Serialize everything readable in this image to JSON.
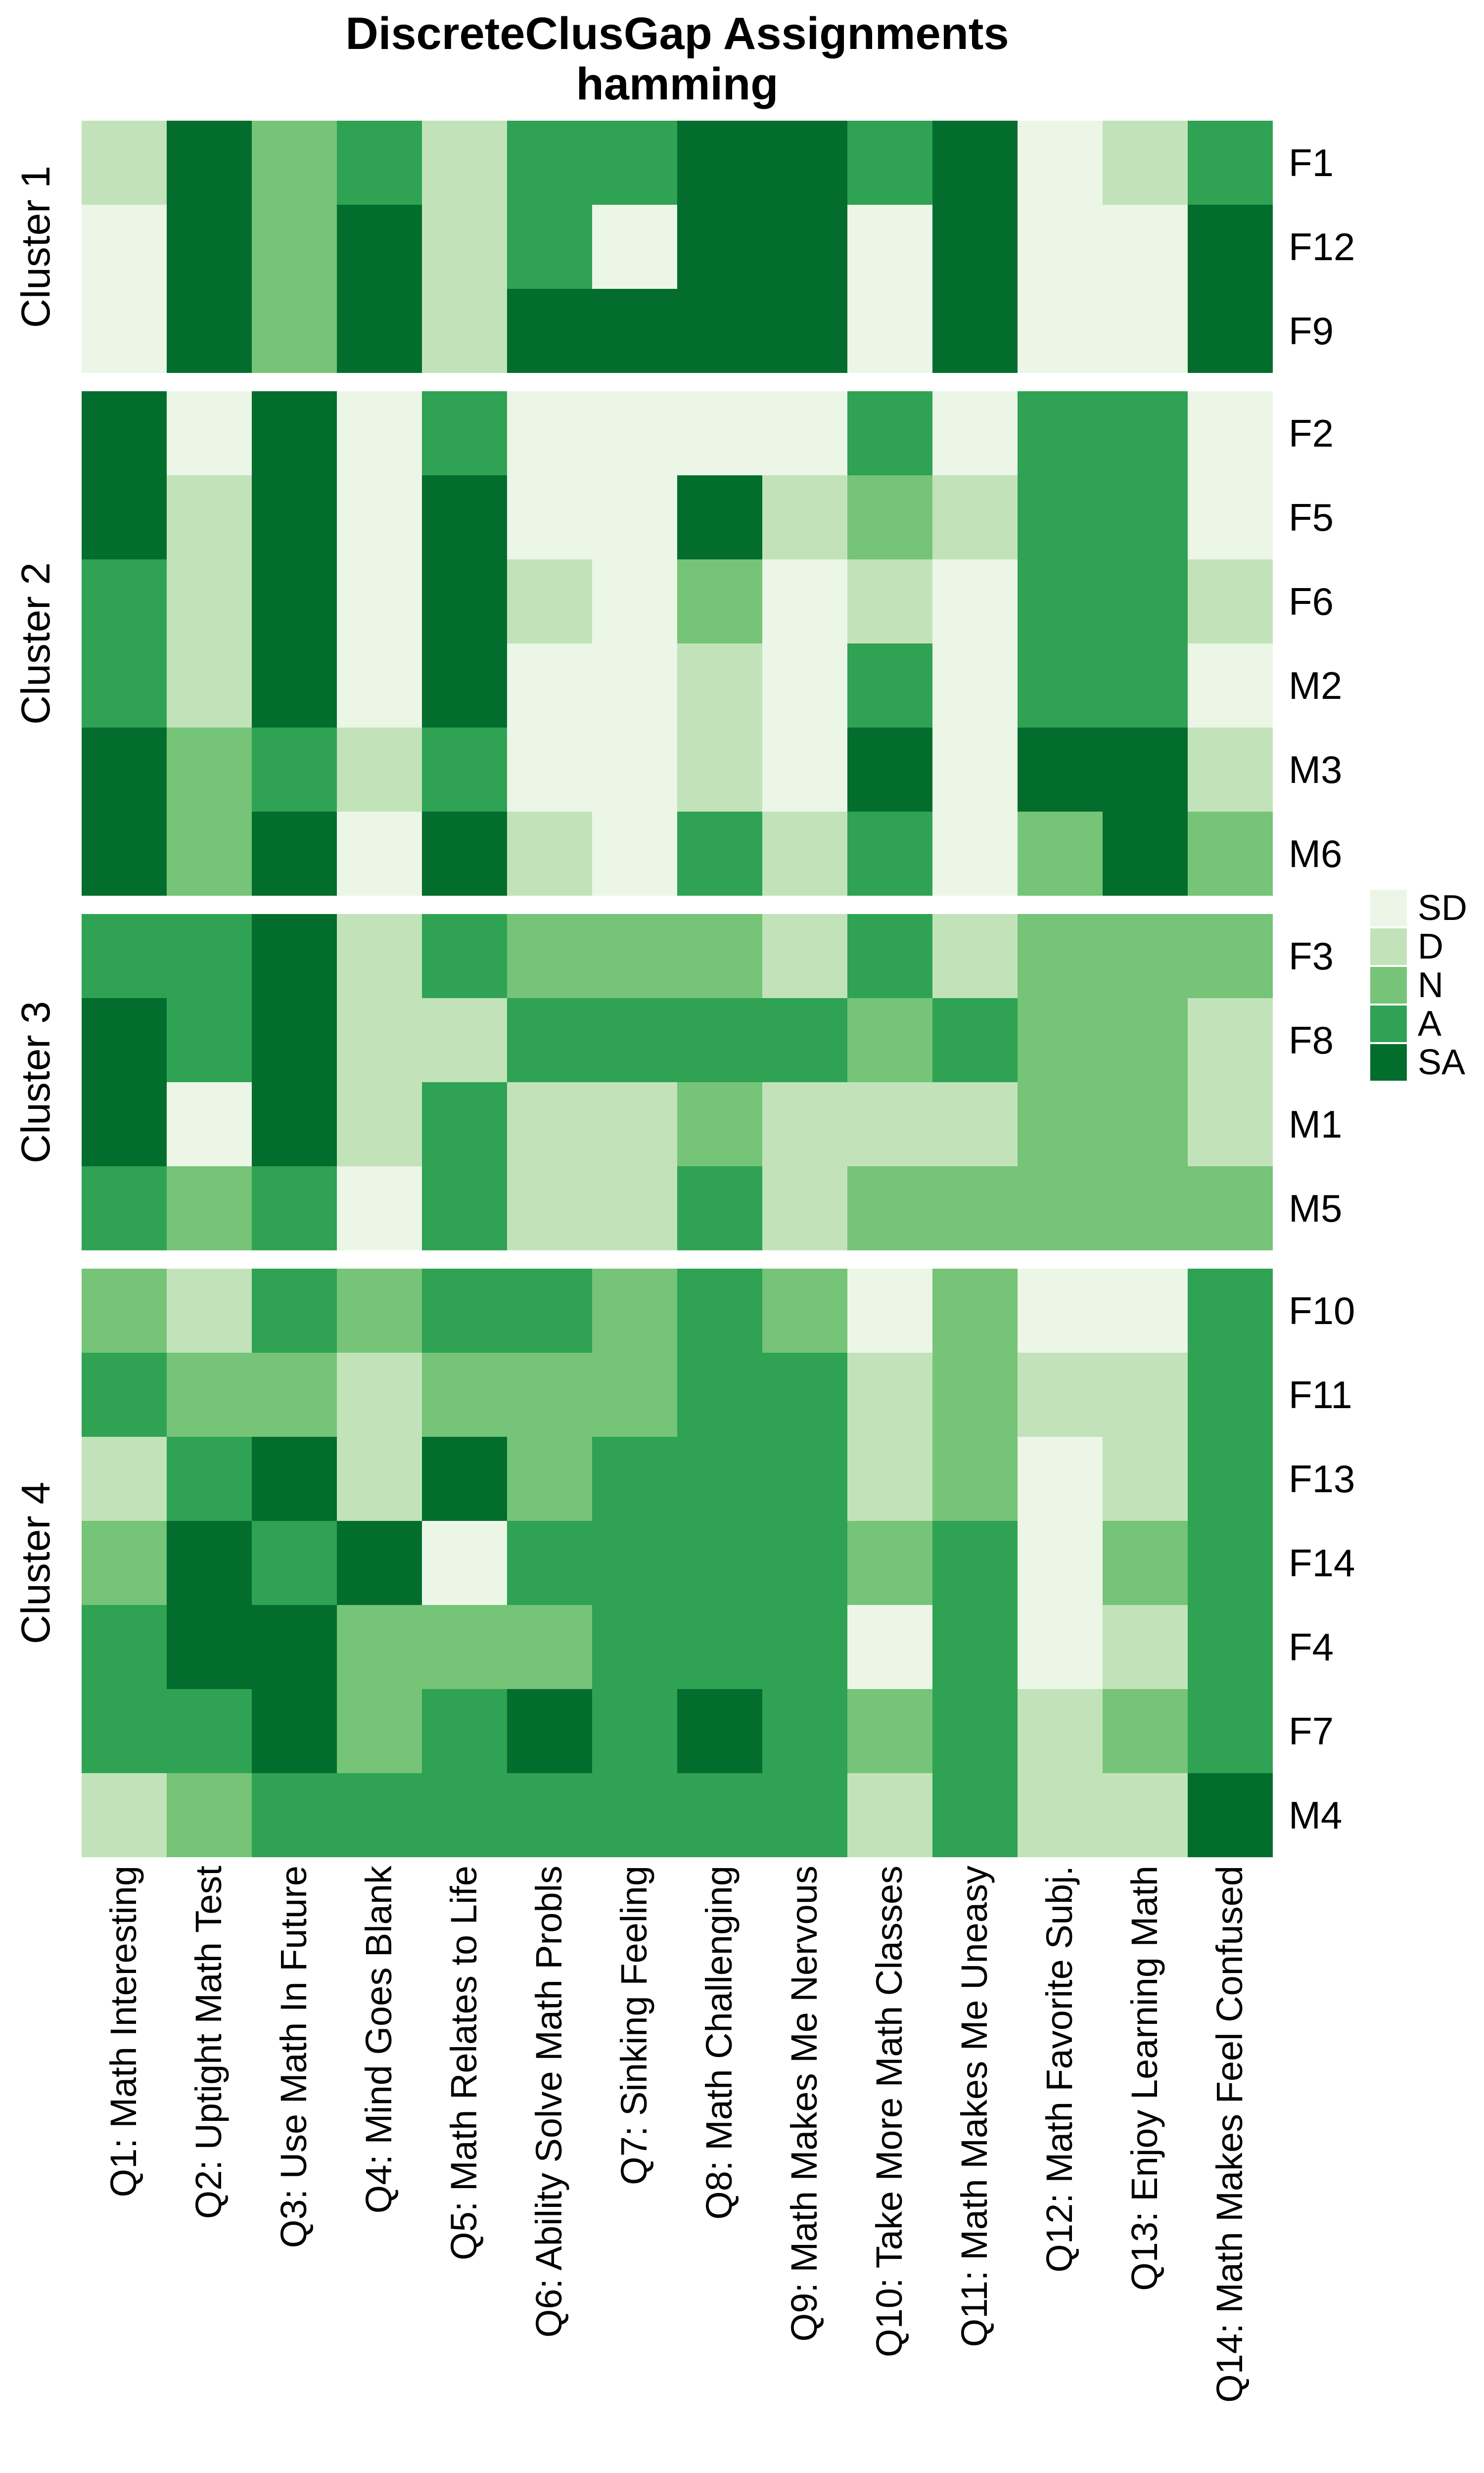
{
  "title": "DiscreteClusGap Assignments",
  "subtitle": "hamming",
  "chart_data": {
    "type": "heatmap",
    "title": "DiscreteClusGap Assignments",
    "subtitle": "hamming",
    "legend_position": "right",
    "grid": false,
    "columns": [
      "Q1: Math Interesting",
      "Q2: Uptight Math Test",
      "Q3: Use Math In Future",
      "Q4: Mind Goes Blank",
      "Q5: Math Relates to Life",
      "Q6: Ability Solve Math Probls",
      "Q7: Sinking Feeling",
      "Q8: Math Challenging",
      "Q9: Math Makes Me Nervous",
      "Q10: Take More Math Classes",
      "Q11: Math Makes Me Uneasy",
      "Q12: Math Favorite Subj.",
      "Q13: Enjoy Learning Math",
      "Q14: Math Makes Feel Confused"
    ],
    "scale": {
      "levels": [
        "SD",
        "D",
        "N",
        "A",
        "SA"
      ],
      "colors": {
        "SD": "#EBF6E7",
        "D": "#C2E3BA",
        "N": "#75C477",
        "A": "#2FA254",
        "SA": "#036D2D"
      }
    },
    "clusters": [
      {
        "name": "Cluster 1",
        "rows": [
          {
            "label": "F1",
            "values": [
              "D",
              "SA",
              "N",
              "A",
              "D",
              "A",
              "A",
              "SA",
              "SA",
              "A",
              "SA",
              "SD",
              "D",
              "A"
            ]
          },
          {
            "label": "F12",
            "values": [
              "SD",
              "SA",
              "N",
              "SA",
              "D",
              "A",
              "SD",
              "SA",
              "SA",
              "SD",
              "SA",
              "SD",
              "SD",
              "SA"
            ]
          },
          {
            "label": "F9",
            "values": [
              "SD",
              "SA",
              "N",
              "SA",
              "D",
              "SA",
              "SA",
              "SA",
              "SA",
              "SD",
              "SA",
              "SD",
              "SD",
              "SA"
            ]
          }
        ]
      },
      {
        "name": "Cluster 2",
        "rows": [
          {
            "label": "F2",
            "values": [
              "SA",
              "SD",
              "SA",
              "SD",
              "A",
              "SD",
              "SD",
              "SD",
              "SD",
              "A",
              "SD",
              "A",
              "A",
              "SD"
            ]
          },
          {
            "label": "F5",
            "values": [
              "SA",
              "D",
              "SA",
              "SD",
              "SA",
              "SD",
              "SD",
              "SA",
              "D",
              "N",
              "D",
              "A",
              "A",
              "SD"
            ]
          },
          {
            "label": "F6",
            "values": [
              "A",
              "D",
              "SA",
              "SD",
              "SA",
              "D",
              "SD",
              "N",
              "SD",
              "D",
              "SD",
              "A",
              "A",
              "D"
            ]
          },
          {
            "label": "M2",
            "values": [
              "A",
              "D",
              "SA",
              "SD",
              "SA",
              "SD",
              "SD",
              "D",
              "SD",
              "A",
              "SD",
              "A",
              "A",
              "SD"
            ]
          },
          {
            "label": "M3",
            "values": [
              "SA",
              "N",
              "A",
              "D",
              "A",
              "SD",
              "SD",
              "D",
              "SD",
              "SA",
              "SD",
              "SA",
              "SA",
              "D"
            ]
          },
          {
            "label": "M6",
            "values": [
              "SA",
              "N",
              "SA",
              "SD",
              "SA",
              "D",
              "SD",
              "A",
              "D",
              "A",
              "SD",
              "N",
              "SA",
              "N"
            ]
          }
        ]
      },
      {
        "name": "Cluster 3",
        "rows": [
          {
            "label": "F3",
            "values": [
              "A",
              "A",
              "SA",
              "D",
              "A",
              "N",
              "N",
              "N",
              "D",
              "A",
              "D",
              "N",
              "N",
              "N"
            ]
          },
          {
            "label": "F8",
            "values": [
              "SA",
              "A",
              "SA",
              "D",
              "D",
              "A",
              "A",
              "A",
              "A",
              "N",
              "A",
              "N",
              "N",
              "D"
            ]
          },
          {
            "label": "M1",
            "values": [
              "SA",
              "SD",
              "SA",
              "D",
              "A",
              "D",
              "D",
              "N",
              "D",
              "D",
              "D",
              "N",
              "N",
              "D"
            ]
          },
          {
            "label": "M5",
            "values": [
              "A",
              "N",
              "A",
              "SD",
              "A",
              "D",
              "D",
              "A",
              "D",
              "N",
              "N",
              "N",
              "N",
              "N"
            ]
          }
        ]
      },
      {
        "name": "Cluster 4",
        "rows": [
          {
            "label": "F10",
            "values": [
              "N",
              "D",
              "A",
              "N",
              "A",
              "A",
              "N",
              "A",
              "N",
              "SD",
              "N",
              "SD",
              "SD",
              "A"
            ]
          },
          {
            "label": "F11",
            "values": [
              "A",
              "N",
              "N",
              "D",
              "N",
              "N",
              "N",
              "A",
              "A",
              "D",
              "N",
              "D",
              "D",
              "A"
            ]
          },
          {
            "label": "F13",
            "values": [
              "D",
              "A",
              "SA",
              "D",
              "SA",
              "N",
              "A",
              "A",
              "A",
              "D",
              "N",
              "SD",
              "D",
              "A"
            ]
          },
          {
            "label": "F14",
            "values": [
              "N",
              "SA",
              "A",
              "SA",
              "SD",
              "A",
              "A",
              "A",
              "A",
              "N",
              "A",
              "SD",
              "N",
              "A"
            ]
          },
          {
            "label": "F4",
            "values": [
              "A",
              "SA",
              "SA",
              "N",
              "N",
              "N",
              "A",
              "A",
              "A",
              "SD",
              "A",
              "SD",
              "D",
              "A"
            ]
          },
          {
            "label": "F7",
            "values": [
              "A",
              "A",
              "SA",
              "N",
              "A",
              "SA",
              "A",
              "SA",
              "A",
              "N",
              "A",
              "D",
              "N",
              "A"
            ]
          },
          {
            "label": "M4",
            "values": [
              "D",
              "N",
              "A",
              "A",
              "A",
              "A",
              "A",
              "A",
              "A",
              "D",
              "A",
              "D",
              "D",
              "SA"
            ]
          }
        ]
      }
    ]
  }
}
